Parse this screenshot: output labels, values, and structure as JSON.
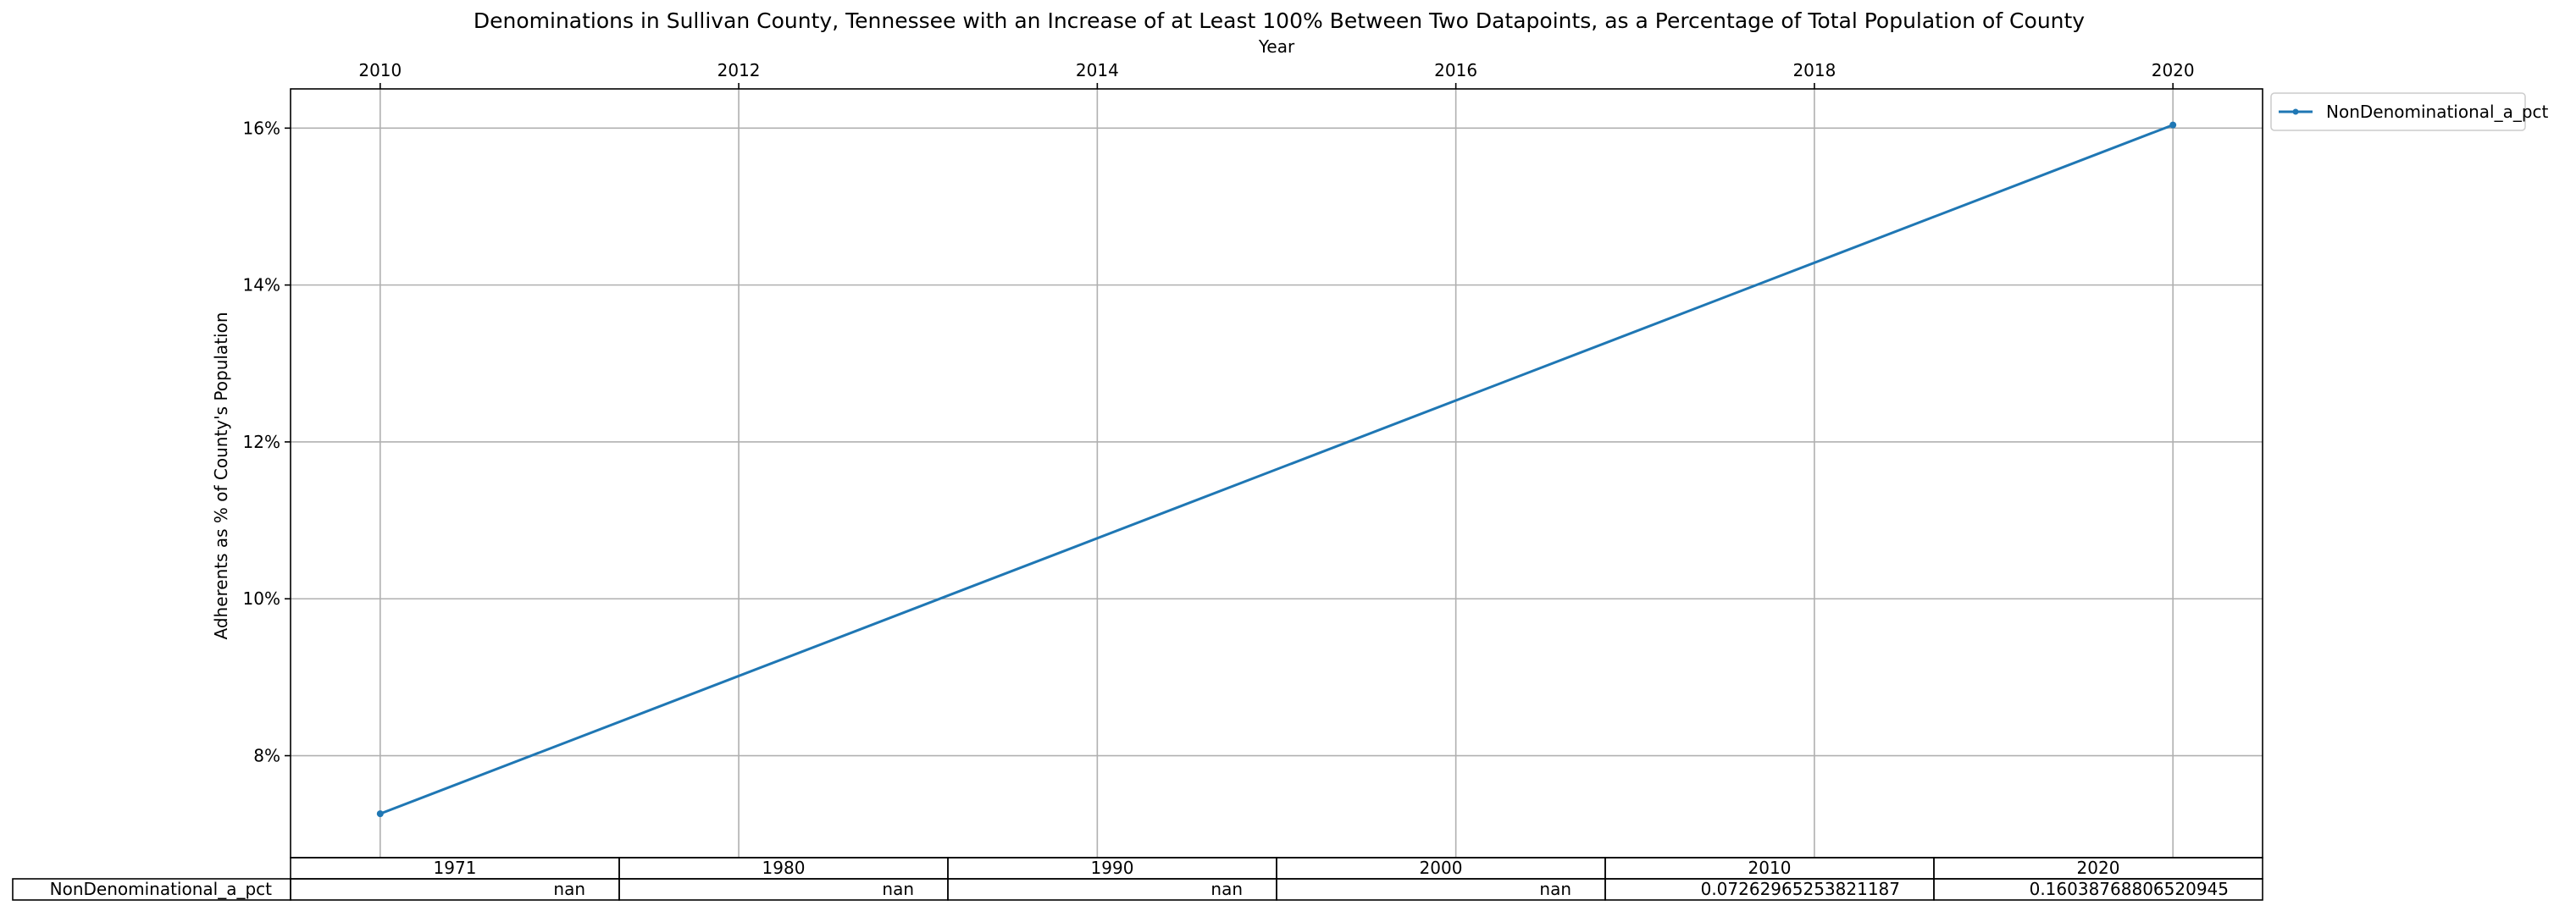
{
  "chart_data": {
    "type": "line",
    "title": "Denominations in Sullivan County, Tennessee with an Increase of at Least 100% Between Two Datapoints, as a Percentage of Total Population of County",
    "xlabel": "Year",
    "ylabel": "Adherents as % of County's Population",
    "xlim": [
      2009.5,
      2020.5
    ],
    "ylim": [
      6.7,
      16.5
    ],
    "x_ticks": [
      2010,
      2012,
      2014,
      2016,
      2018,
      2020
    ],
    "x_tick_labels": [
      "2010",
      "2012",
      "2014",
      "2016",
      "2018",
      "2020"
    ],
    "y_ticks": [
      8,
      10,
      12,
      14,
      16
    ],
    "y_tick_labels": [
      "8%",
      "10%",
      "12%",
      "14%",
      "16%"
    ],
    "grid": true,
    "legend_position": "outside top-right",
    "series": [
      {
        "name": "NonDenominational_a_pct",
        "color": "#1f77b4",
        "x": [
          2010,
          2020
        ],
        "y": [
          7.26,
          16.04
        ]
      }
    ],
    "table": {
      "columns": [
        "1971",
        "1980",
        "1990",
        "2000",
        "2010",
        "2020"
      ],
      "rows": [
        {
          "label": "NonDenominational_a_pct",
          "values": [
            "nan",
            "nan",
            "nan",
            "nan",
            "0.07262965253821187",
            "0.16038768806520945"
          ]
        }
      ]
    }
  }
}
